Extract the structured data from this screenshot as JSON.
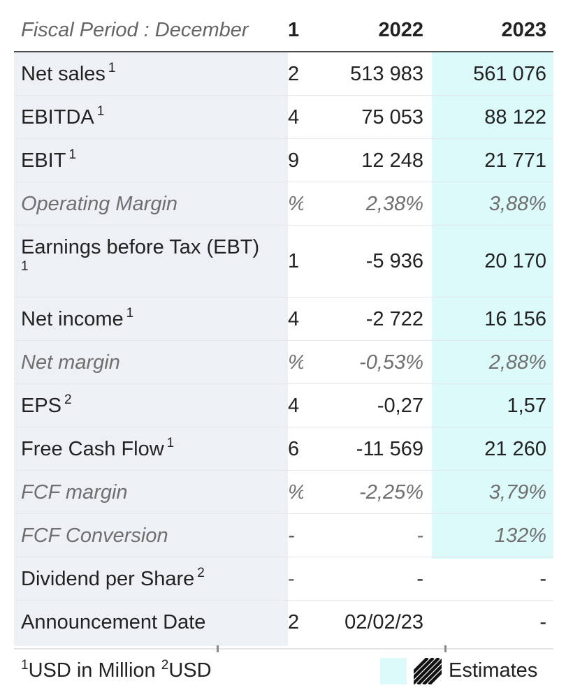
{
  "header": {
    "label": "Fiscal Period : December",
    "col1": "1",
    "col2": "2022",
    "col3": "2023"
  },
  "rows": [
    {
      "label": "Net sales",
      "sup": "1",
      "c1": "2",
      "c2": "513 983",
      "c3": "561 076"
    },
    {
      "label": "EBITDA",
      "sup": "1",
      "c1": "4",
      "c2": "75 053",
      "c3": "88 122"
    },
    {
      "label": "EBIT",
      "sup": "1",
      "c1": "9",
      "c2": "12 248",
      "c3": "21 771"
    },
    {
      "label": "Operating Margin",
      "sup": "",
      "c1": "%",
      "c2": "2,38%",
      "c3": "3,88%"
    },
    {
      "label": "Earnings before Tax (EBT)",
      "sup": "1",
      "c1": "1",
      "c2": "-5 936",
      "c3": "20 170"
    },
    {
      "label": "Net income",
      "sup": "1",
      "c1": "4",
      "c2": "-2 722",
      "c3": "16 156"
    },
    {
      "label": "Net margin",
      "sup": "",
      "c1": "%",
      "c2": "-0,53%",
      "c3": "2,88%"
    },
    {
      "label": "EPS",
      "sup": "2",
      "c1": "4",
      "c2": "-0,27",
      "c3": "1,57"
    },
    {
      "label": "Free Cash Flow",
      "sup": "1",
      "c1": "6",
      "c2": "-11 569",
      "c3": "21 260"
    },
    {
      "label": "FCF margin",
      "sup": "",
      "c1": "%",
      "c2": "-2,25%",
      "c3": "3,79%"
    },
    {
      "label": "FCF Conversion",
      "sup": "",
      "c1": "-",
      "c2": "-",
      "c3": "132%"
    },
    {
      "label": "Dividend per Share",
      "sup": "2",
      "c1": "-",
      "c2": "-",
      "c3": "-"
    },
    {
      "label": "Announcement Date",
      "sup": "",
      "c1": "2",
      "c2": "02/02/23",
      "c3": "-"
    }
  ],
  "footer": {
    "note1_sup": "1",
    "note1_text": "USD in Million",
    "note2_sup": "2",
    "note2_text": "USD",
    "legend_label": "Estimates"
  },
  "colors": {
    "estimate_bg": "#ddfafa",
    "label_bg": "#edf1f5",
    "header_rule": "#4a4a4a"
  }
}
